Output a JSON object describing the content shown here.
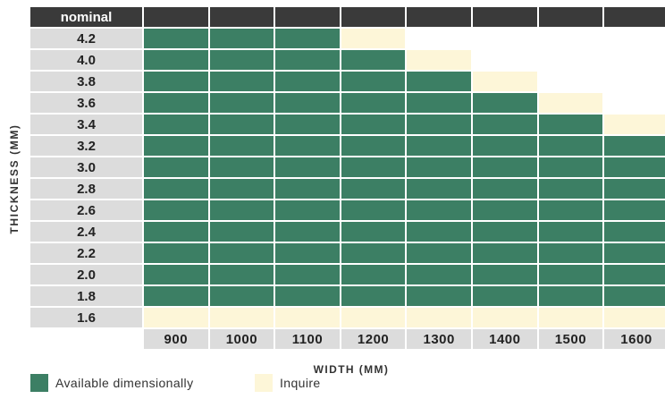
{
  "chart_data": {
    "type": "table",
    "corner_label": "nominal",
    "xlabel": "WIDTH (MM)",
    "ylabel": "THICKNESS (MM)",
    "columns": [
      "900",
      "1000",
      "1100",
      "1200",
      "1300",
      "1400",
      "1500",
      "1600"
    ],
    "rows": [
      "4.2",
      "4.0",
      "3.8",
      "3.6",
      "3.4",
      "3.2",
      "3.0",
      "2.8",
      "2.6",
      "2.4",
      "2.2",
      "2.0",
      "1.8",
      "1.6"
    ],
    "cells": [
      [
        "A",
        "A",
        "A",
        "I",
        "-",
        "-",
        "-",
        "-"
      ],
      [
        "A",
        "A",
        "A",
        "A",
        "I",
        "-",
        "-",
        "-"
      ],
      [
        "A",
        "A",
        "A",
        "A",
        "A",
        "I",
        "-",
        "-"
      ],
      [
        "A",
        "A",
        "A",
        "A",
        "A",
        "A",
        "I",
        "-"
      ],
      [
        "A",
        "A",
        "A",
        "A",
        "A",
        "A",
        "A",
        "I"
      ],
      [
        "A",
        "A",
        "A",
        "A",
        "A",
        "A",
        "A",
        "A"
      ],
      [
        "A",
        "A",
        "A",
        "A",
        "A",
        "A",
        "A",
        "A"
      ],
      [
        "A",
        "A",
        "A",
        "A",
        "A",
        "A",
        "A",
        "A"
      ],
      [
        "A",
        "A",
        "A",
        "A",
        "A",
        "A",
        "A",
        "A"
      ],
      [
        "A",
        "A",
        "A",
        "A",
        "A",
        "A",
        "A",
        "A"
      ],
      [
        "A",
        "A",
        "A",
        "A",
        "A",
        "A",
        "A",
        "A"
      ],
      [
        "A",
        "A",
        "A",
        "A",
        "A",
        "A",
        "A",
        "A"
      ],
      [
        "A",
        "A",
        "A",
        "A",
        "A",
        "A",
        "A",
        "A"
      ],
      [
        "I",
        "I",
        "I",
        "I",
        "I",
        "I",
        "I",
        "I"
      ]
    ],
    "legend": [
      {
        "key": "A",
        "label": "Available dimensionally",
        "color": "#3c7f64"
      },
      {
        "key": "I",
        "label": "Inquire",
        "color": "#fdf6d8"
      }
    ],
    "header_color": "#3a3a3a",
    "label_bg_color": "#dcdcdc"
  }
}
